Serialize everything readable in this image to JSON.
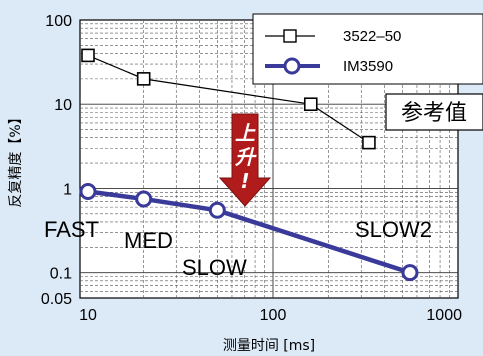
{
  "chart_data": {
    "type": "line",
    "xscale": "log",
    "yscale": "log",
    "xlim": [
      10,
      1000
    ],
    "ylim": [
      0.05,
      100
    ],
    "xticks": [
      "10",
      "100",
      "1000"
    ],
    "yticks": [
      "100",
      "10",
      "1",
      "0.1",
      "0.05"
    ],
    "xlabel": "测量时间 [ms]",
    "ylabel": "反复精度【%】",
    "grid": true,
    "legend_position": "top-right",
    "series": [
      {
        "name": "3522–50",
        "marker": "square",
        "color": "#000000",
        "x": [
          10,
          20,
          160,
          330
        ],
        "y": [
          38,
          20,
          10,
          3.5
        ]
      },
      {
        "name": "IM3590",
        "marker": "circle",
        "color": "#3a3a9a",
        "x": [
          10,
          20,
          50,
          550
        ],
        "y": [
          0.92,
          0.75,
          0.55,
          0.1
        ]
      }
    ],
    "point_labels": [
      "FAST",
      "MED",
      "SLOW",
      "SLOW2"
    ],
    "callout": "参考值",
    "arrow_label": "上升!"
  }
}
